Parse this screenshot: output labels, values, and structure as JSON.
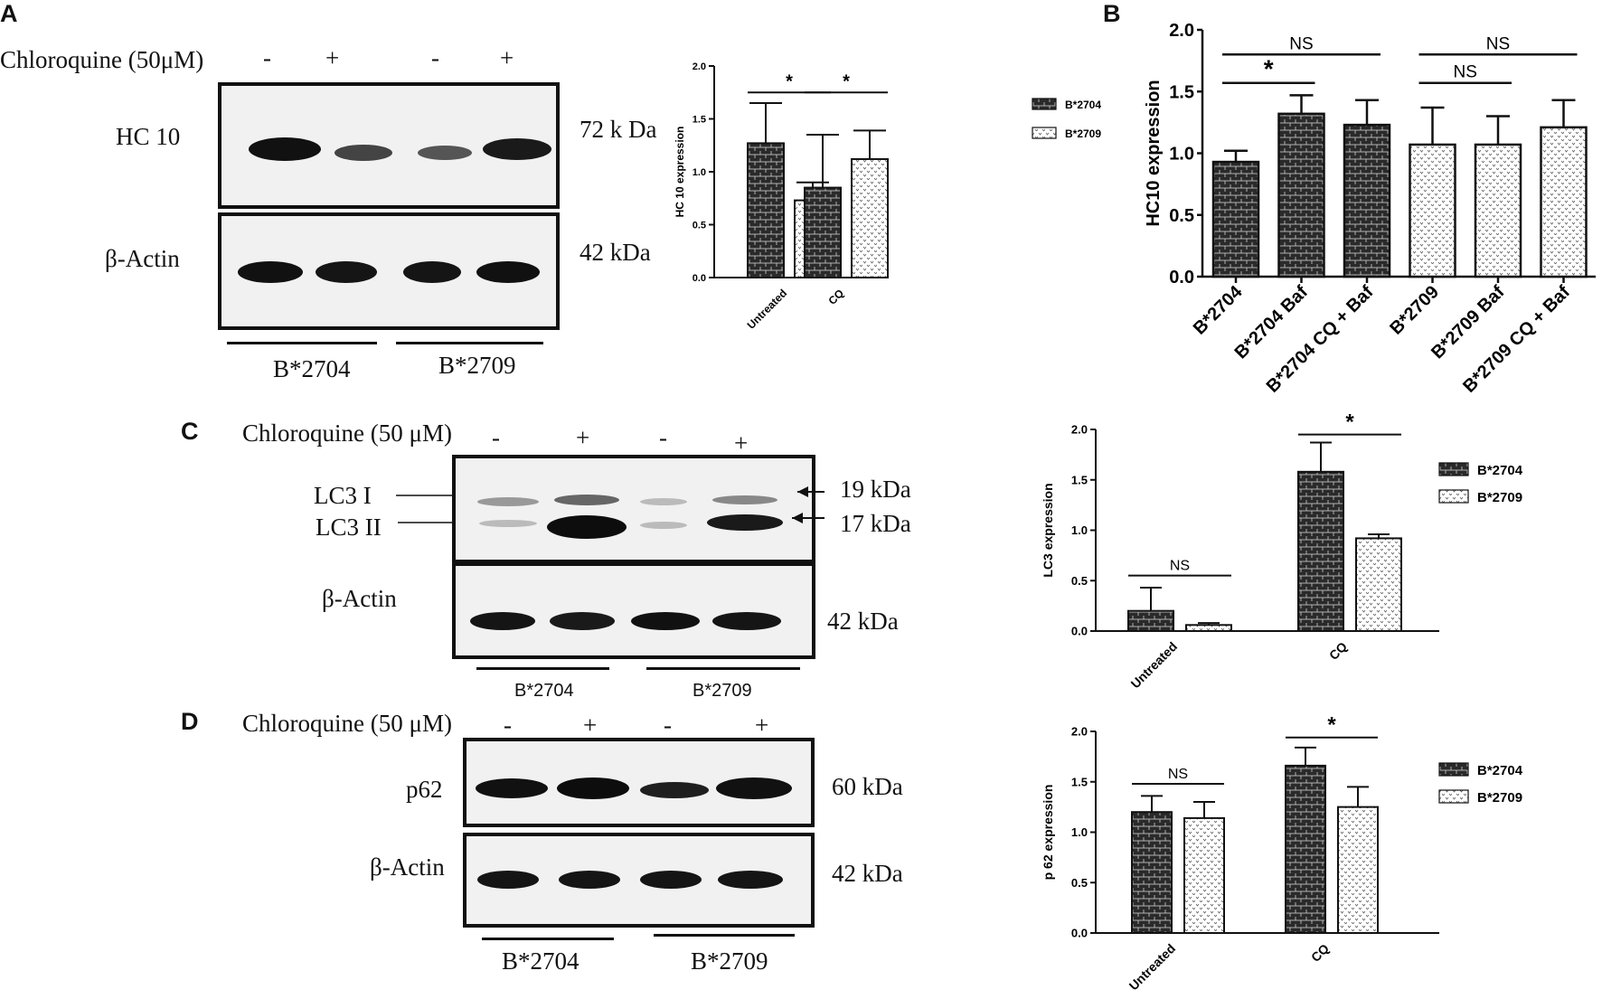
{
  "panels": {
    "A": {
      "letter": "A",
      "treatment_label": "Chloroquine (50μM)",
      "lane_signs": [
        "-",
        "+",
        "-",
        "+"
      ],
      "blot1_label": "HC 10",
      "blot1_mw": "72 k Da",
      "blot2_label": "β-Actin",
      "blot2_mw": "42 kDa",
      "group1": "B*2704",
      "group2": "B*2709"
    },
    "B": {
      "letter": "B"
    },
    "C": {
      "letter": "C",
      "treatment_label": "Chloroquine (50 μM)",
      "lane_signs": [
        "-",
        "+",
        "-",
        "+"
      ],
      "band1_label": "LC3 I",
      "band2_label": "LC3 II",
      "band1_mw": "19 kDa",
      "band2_mw": "17 kDa",
      "blot2_label": "β-Actin",
      "blot2_mw": "42 kDa",
      "group1": "B*2704",
      "group2": "B*2709"
    },
    "D": {
      "letter": "D",
      "treatment_label": "Chloroquine (50 μM)",
      "lane_signs": [
        "-",
        "+",
        "-",
        "+"
      ],
      "blot1_label": "p62",
      "blot1_mw": "60 kDa",
      "blot2_label": "β-Actin",
      "blot2_mw": "42 kDa",
      "group1": "B*2704",
      "group2": "B*2709"
    }
  },
  "colors": {
    "dark_bar": "#2a2a2a",
    "light_bar": "#ffffff",
    "ink": "#111111"
  },
  "chart_data": [
    {
      "id": "A",
      "type": "bar",
      "ylabel": "HC 10 expression",
      "ylim": [
        0,
        2.0
      ],
      "yticks": [
        "0.0",
        "0.5",
        "1.0",
        "1.5",
        "2.0"
      ],
      "categories": [
        "Untreated",
        "CQ"
      ],
      "series": [
        {
          "name": "B*2704",
          "values": [
            1.27,
            0.85
          ],
          "errors": [
            0.38,
            0.5
          ],
          "pattern": "dark"
        },
        {
          "name": "B*2709",
          "values": [
            0.73,
            1.12
          ],
          "errors": [
            0.17,
            0.27
          ],
          "pattern": "light"
        }
      ],
      "significance": [
        {
          "category": "Untreated",
          "label": "*"
        },
        {
          "category": "CQ",
          "label": "*"
        }
      ],
      "legend": "right"
    },
    {
      "id": "B",
      "type": "bar",
      "ylabel": "HC10 expression",
      "ylim": [
        0,
        2.0
      ],
      "yticks": [
        "0.0",
        "0.5",
        "1.0",
        "1.5",
        "2.0"
      ],
      "categories": [
        "B*2704",
        "B*2704 Baf",
        "B*2704 CQ + Baf",
        "B*2709",
        "B*2709 Baf",
        "B*2709 CQ + Baf"
      ],
      "values": [
        0.93,
        1.32,
        1.23,
        1.07,
        1.07,
        1.21
      ],
      "errors": [
        0.09,
        0.15,
        0.2,
        0.3,
        0.23,
        0.22
      ],
      "patterns": [
        "dark",
        "dark",
        "dark",
        "light",
        "light",
        "light"
      ],
      "significance": [
        {
          "from": 0,
          "to": 1,
          "label": "*"
        },
        {
          "from": 0,
          "to": 2,
          "label": "NS"
        },
        {
          "from": 3,
          "to": 4,
          "label": "NS"
        },
        {
          "from": 3,
          "to": 5,
          "label": "NS"
        }
      ]
    },
    {
      "id": "C",
      "type": "bar",
      "ylabel": "LC3 expression",
      "ylim": [
        0,
        2.0
      ],
      "yticks": [
        "0.0",
        "0.5",
        "1.0",
        "1.5",
        "2.0"
      ],
      "categories": [
        "Untreated",
        "CQ"
      ],
      "series": [
        {
          "name": "B*2704",
          "values": [
            0.2,
            1.58
          ],
          "errors": [
            0.23,
            0.29
          ],
          "pattern": "dark"
        },
        {
          "name": "B*2709",
          "values": [
            0.06,
            0.92
          ],
          "errors": [
            0.02,
            0.04
          ],
          "pattern": "light"
        }
      ],
      "significance": [
        {
          "category": "Untreated",
          "label": "NS"
        },
        {
          "category": "CQ",
          "label": "*"
        }
      ],
      "legend": "right"
    },
    {
      "id": "D",
      "type": "bar",
      "ylabel": "p 62 expression",
      "ylim": [
        0,
        2.0
      ],
      "yticks": [
        "0.0",
        "0.5",
        "1.0",
        "1.5",
        "2.0"
      ],
      "categories": [
        "Untreated",
        "CQ"
      ],
      "series": [
        {
          "name": "B*2704",
          "values": [
            1.2,
            1.66
          ],
          "errors": [
            0.16,
            0.18
          ],
          "pattern": "dark"
        },
        {
          "name": "B*2709",
          "values": [
            1.14,
            1.25
          ],
          "errors": [
            0.16,
            0.2
          ],
          "pattern": "light"
        }
      ],
      "significance": [
        {
          "category": "Untreated",
          "label": "NS"
        },
        {
          "category": "CQ",
          "label": "*"
        }
      ],
      "legend": "right"
    }
  ]
}
